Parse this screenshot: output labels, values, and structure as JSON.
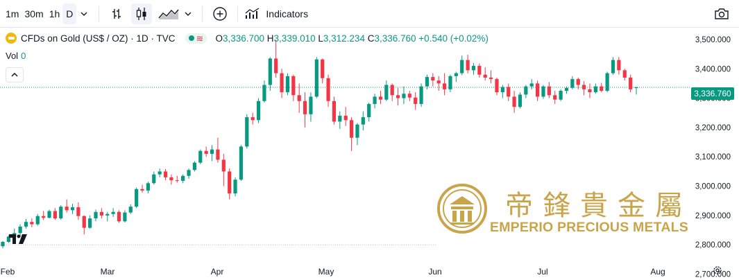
{
  "toolbar": {
    "intervals": [
      "1m",
      "30m",
      "1h",
      "D"
    ],
    "indicators_label": "Indicators",
    "icons": [
      "chevron-down-icon",
      "bar-chart-icon",
      "candles-icon",
      "area-chart-icon",
      "chevron-down-icon",
      "plus-circle-icon",
      "indicators-icon",
      "camera-icon"
    ]
  },
  "legend": {
    "symbol": "CFDs on Gold (US$ / OZ) · 1D · TVC",
    "open_key": "O",
    "open": "3,336.700",
    "high_key": "H",
    "high": "3,339.010",
    "low_key": "L",
    "low": "3,312.234",
    "close_key": "C",
    "close": "3,336.760",
    "change": "+0.540 (+0.02%)"
  },
  "volume": {
    "label": "Vol",
    "value": "0"
  },
  "last_price_label": "3,336.760",
  "watermark": {
    "chinese": "帝鋒貴金屬",
    "english": "EMPERIO PRECIOUS METALS"
  },
  "colors": {
    "up": "#089981",
    "down": "#f23645",
    "gold": "#c9a449"
  },
  "chart_data": {
    "type": "candlestick",
    "x_ticks": [
      "Feb",
      "Mar",
      "Apr",
      "May",
      "Jun",
      "Jul",
      "Aug"
    ],
    "y_ticks": [
      "3,500.000",
      "3,400.000",
      "3,300.000",
      "3,200.000",
      "3,100.000",
      "3,000.000",
      "2,900.000",
      "2,800.000",
      "2,700.000"
    ],
    "ylim": [
      2680,
      3540
    ],
    "last_price": 3336.76,
    "reference_line": 2800,
    "candles": [
      [
        2795,
        2813,
        2788,
        2810
      ],
      [
        2810,
        2832,
        2806,
        2828
      ],
      [
        2828,
        2855,
        2820,
        2840
      ],
      [
        2840,
        2870,
        2830,
        2862
      ],
      [
        2862,
        2888,
        2855,
        2878
      ],
      [
        2878,
        2890,
        2860,
        2870
      ],
      [
        2870,
        2905,
        2865,
        2898
      ],
      [
        2898,
        2915,
        2885,
        2892
      ],
      [
        2892,
        2920,
        2890,
        2915
      ],
      [
        2915,
        2925,
        2885,
        2890
      ],
      [
        2890,
        2935,
        2885,
        2930
      ],
      [
        2930,
        2955,
        2910,
        2918
      ],
      [
        2918,
        2940,
        2905,
        2928
      ],
      [
        2928,
        2945,
        2885,
        2898
      ],
      [
        2898,
        2900,
        2835,
        2858
      ],
      [
        2858,
        2900,
        2855,
        2890
      ],
      [
        2890,
        2920,
        2880,
        2912
      ],
      [
        2912,
        2925,
        2890,
        2900
      ],
      [
        2900,
        2912,
        2880,
        2905
      ],
      [
        2905,
        2925,
        2895,
        2912
      ],
      [
        2912,
        2918,
        2875,
        2880
      ],
      [
        2880,
        2918,
        2876,
        2910
      ],
      [
        2910,
        2938,
        2905,
        2930
      ],
      [
        2930,
        2995,
        2925,
        2990
      ],
      [
        2990,
        3005,
        2978,
        2985
      ],
      [
        2985,
        3015,
        2975,
        3010
      ],
      [
        3010,
        3050,
        3005,
        3040
      ],
      [
        3040,
        3060,
        3030,
        3050
      ],
      [
        3050,
        3058,
        3020,
        3030
      ],
      [
        3030,
        3040,
        3005,
        3020
      ],
      [
        3020,
        3035,
        3012,
        3018
      ],
      [
        3018,
        3040,
        3010,
        3035
      ],
      [
        3035,
        3060,
        3025,
        3055
      ],
      [
        3055,
        3085,
        3050,
        3080
      ],
      [
        3080,
        3125,
        3075,
        3120
      ],
      [
        3120,
        3135,
        3100,
        3110
      ],
      [
        3110,
        3140,
        3085,
        3125
      ],
      [
        3125,
        3165,
        3080,
        3090
      ],
      [
        3090,
        3110,
        3000,
        3050
      ],
      [
        3050,
        3060,
        2955,
        2975
      ],
      [
        2975,
        3030,
        2965,
        3022
      ],
      [
        3022,
        3140,
        3018,
        3135
      ],
      [
        3135,
        3245,
        3128,
        3235
      ],
      [
        3235,
        3250,
        3210,
        3225
      ],
      [
        3225,
        3300,
        3215,
        3290
      ],
      [
        3290,
        3360,
        3285,
        3345
      ],
      [
        3345,
        3440,
        3325,
        3435
      ],
      [
        3435,
        3500,
        3370,
        3385
      ],
      [
        3385,
        3400,
        3300,
        3320
      ],
      [
        3320,
        3385,
        3310,
        3375
      ],
      [
        3375,
        3380,
        3290,
        3310
      ],
      [
        3310,
        3350,
        3250,
        3290
      ],
      [
        3290,
        3320,
        3200,
        3245
      ],
      [
        3245,
        3320,
        3220,
        3305
      ],
      [
        3305,
        3440,
        3300,
        3432
      ],
      [
        3432,
        3435,
        3350,
        3368
      ],
      [
        3368,
        3380,
        3270,
        3290
      ],
      [
        3290,
        3305,
        3210,
        3220
      ],
      [
        3220,
        3255,
        3195,
        3240
      ],
      [
        3240,
        3270,
        3205,
        3225
      ],
      [
        3225,
        3235,
        3120,
        3165
      ],
      [
        3165,
        3215,
        3140,
        3210
      ],
      [
        3210,
        3255,
        3190,
        3235
      ],
      [
        3235,
        3285,
        3220,
        3280
      ],
      [
        3280,
        3315,
        3265,
        3305
      ],
      [
        3305,
        3325,
        3280,
        3295
      ],
      [
        3295,
        3360,
        3290,
        3345
      ],
      [
        3345,
        3350,
        3290,
        3310
      ],
      [
        3310,
        3335,
        3275,
        3300
      ],
      [
        3300,
        3340,
        3280,
        3315
      ],
      [
        3315,
        3325,
        3290,
        3302
      ],
      [
        3302,
        3320,
        3260,
        3280
      ],
      [
        3280,
        3350,
        3270,
        3340
      ],
      [
        3340,
        3380,
        3330,
        3372
      ],
      [
        3372,
        3385,
        3340,
        3360
      ],
      [
        3360,
        3375,
        3325,
        3350
      ],
      [
        3350,
        3385,
        3310,
        3330
      ],
      [
        3330,
        3380,
        3320,
        3375
      ],
      [
        3375,
        3390,
        3355,
        3385
      ],
      [
        3385,
        3445,
        3378,
        3430
      ],
      [
        3430,
        3448,
        3385,
        3395
      ],
      [
        3395,
        3420,
        3380,
        3410
      ],
      [
        3410,
        3418,
        3370,
        3380
      ],
      [
        3380,
        3405,
        3360,
        3370
      ],
      [
        3370,
        3395,
        3350,
        3365
      ],
      [
        3365,
        3370,
        3310,
        3320
      ],
      [
        3320,
        3345,
        3300,
        3338
      ],
      [
        3338,
        3350,
        3290,
        3305
      ],
      [
        3305,
        3325,
        3250,
        3270
      ],
      [
        3270,
        3320,
        3265,
        3312
      ],
      [
        3312,
        3345,
        3300,
        3340
      ],
      [
        3340,
        3365,
        3330,
        3350
      ],
      [
        3350,
        3360,
        3290,
        3305
      ],
      [
        3305,
        3345,
        3298,
        3340
      ],
      [
        3340,
        3355,
        3300,
        3310
      ],
      [
        3310,
        3325,
        3280,
        3295
      ],
      [
        3295,
        3330,
        3290,
        3325
      ],
      [
        3325,
        3340,
        3315,
        3335
      ],
      [
        3335,
        3375,
        3330,
        3365
      ],
      [
        3365,
        3370,
        3330,
        3345
      ],
      [
        3345,
        3358,
        3310,
        3330
      ],
      [
        3330,
        3350,
        3300,
        3320
      ],
      [
        3320,
        3350,
        3315,
        3340
      ],
      [
        3340,
        3352,
        3320,
        3325
      ],
      [
        3325,
        3390,
        3320,
        3385
      ],
      [
        3385,
        3440,
        3380,
        3430
      ],
      [
        3430,
        3440,
        3380,
        3395
      ],
      [
        3395,
        3400,
        3360,
        3370
      ],
      [
        3370,
        3380,
        3320,
        3330
      ],
      [
        3336.7,
        3339.01,
        3312.234,
        3336.76
      ]
    ]
  }
}
